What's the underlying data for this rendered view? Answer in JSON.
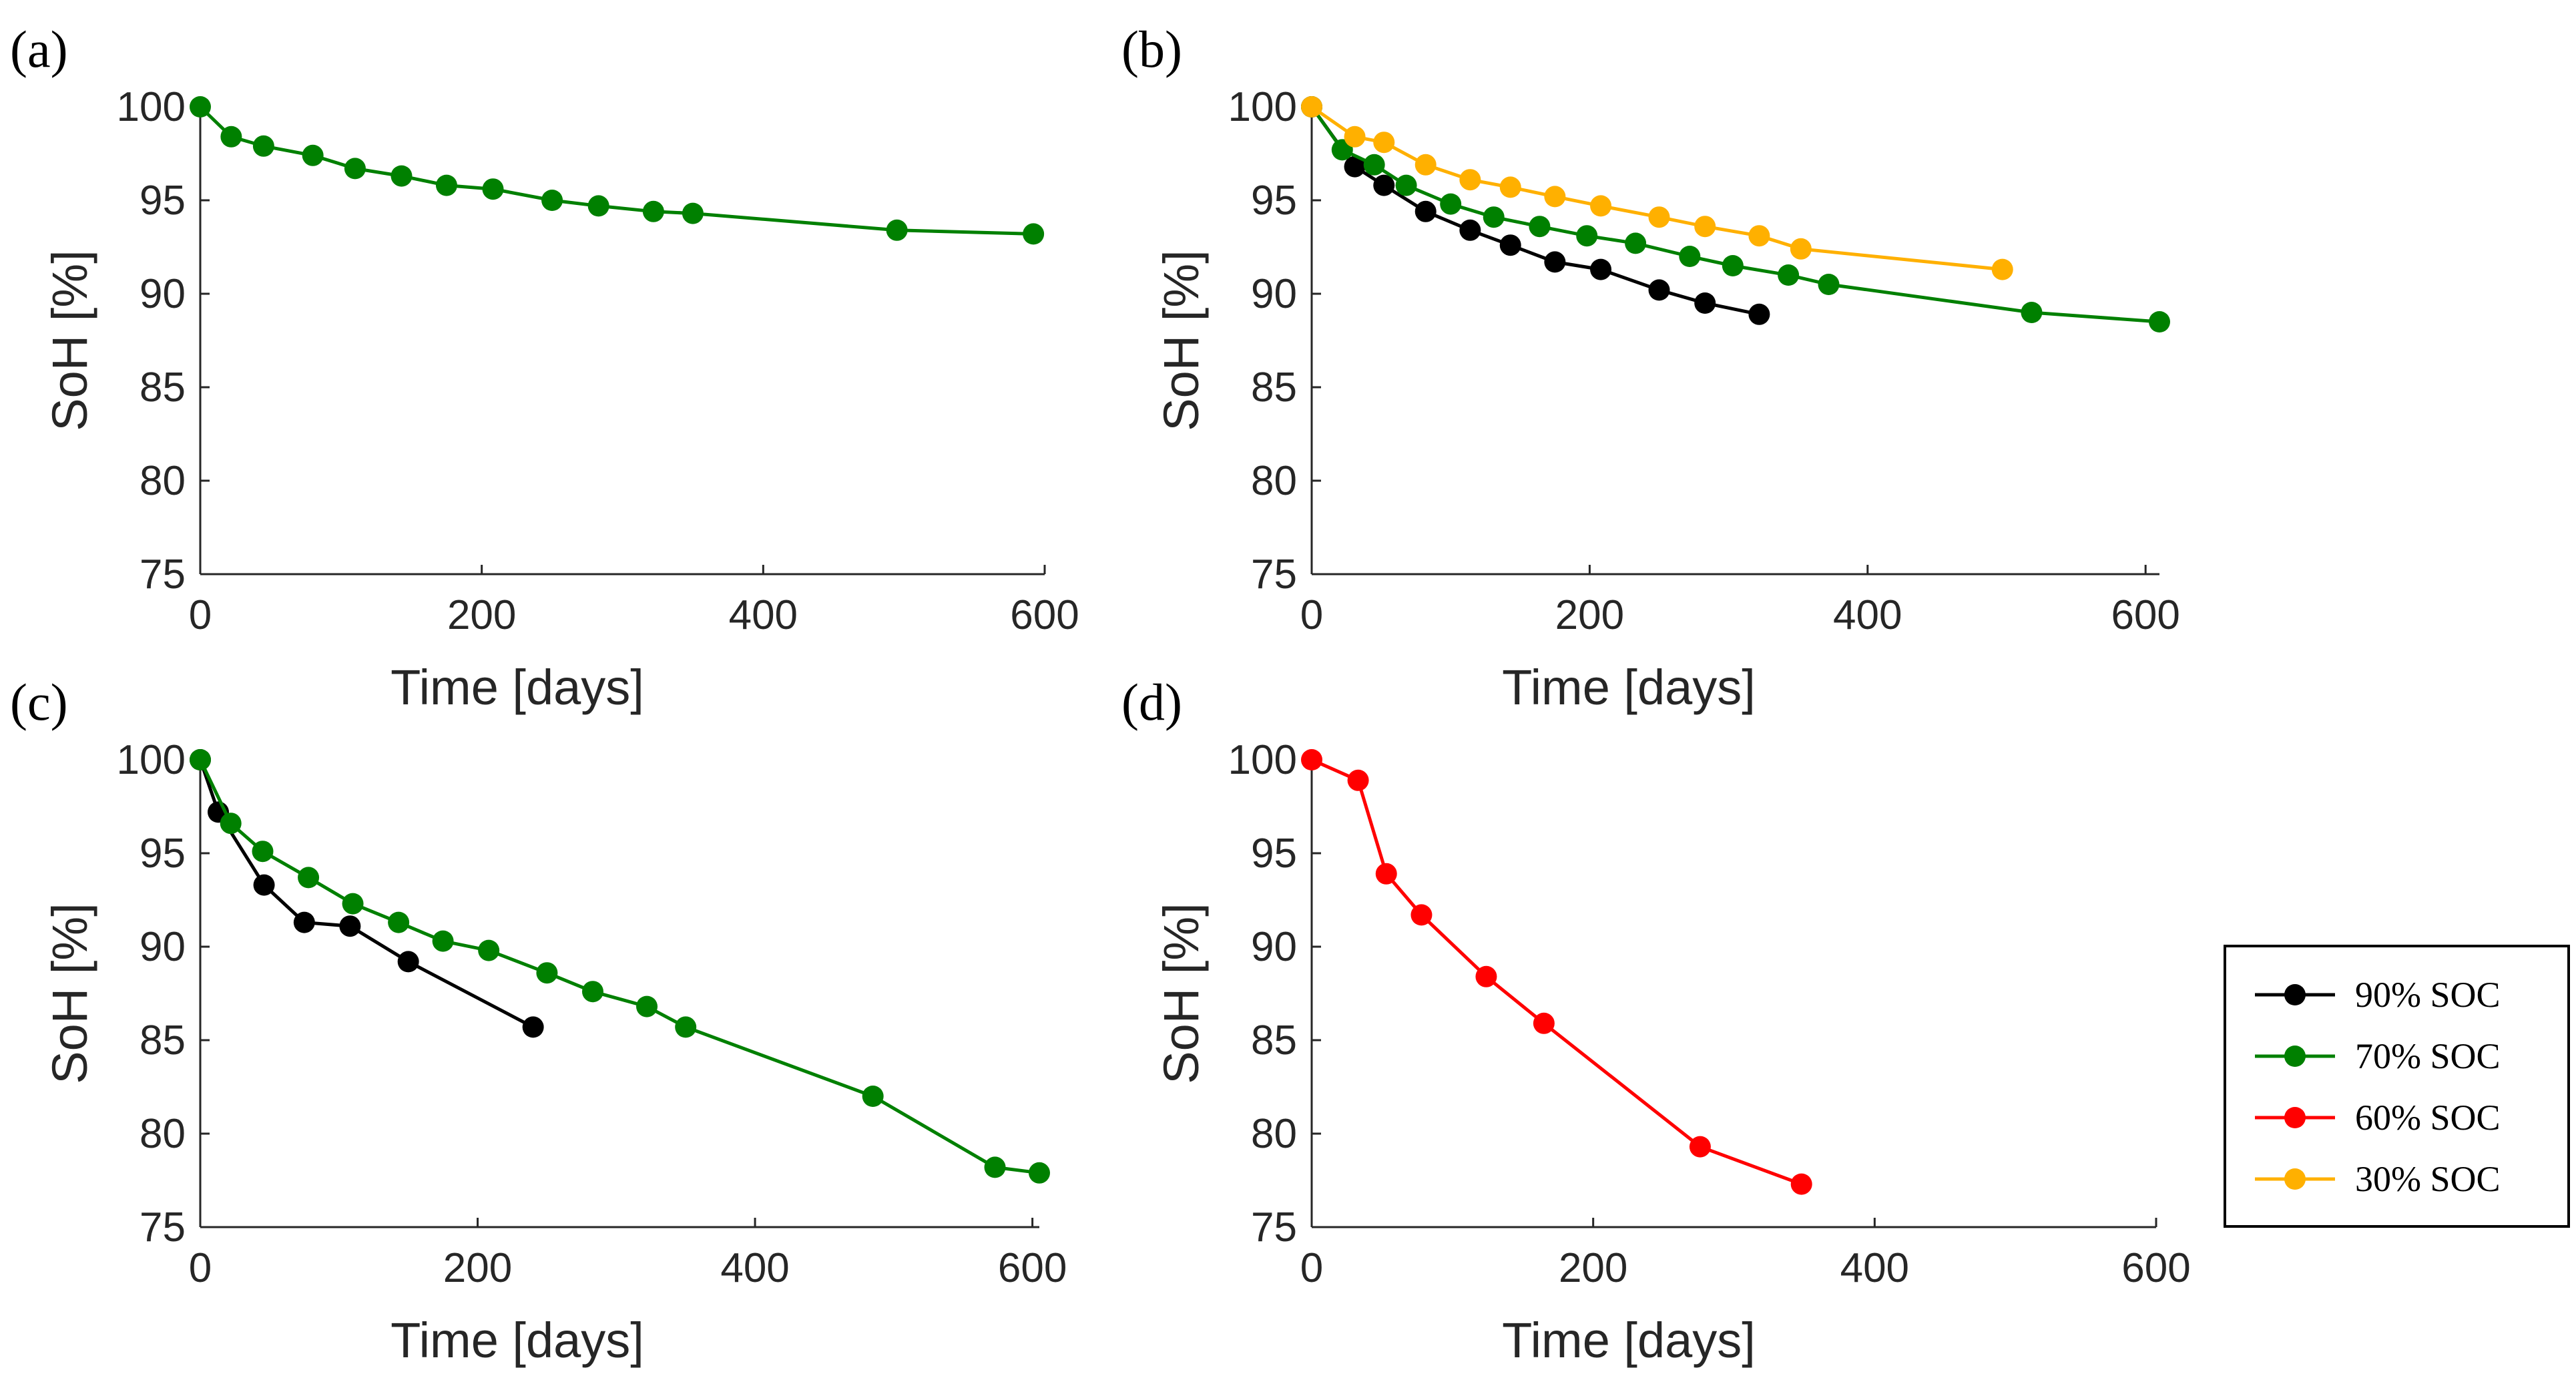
{
  "legend": {
    "entries": [
      {
        "label": "90% SOC",
        "color": "#000000"
      },
      {
        "label": "70% SOC",
        "color": "#008000"
      },
      {
        "label": "60% SOC",
        "color": "#ff0000"
      },
      {
        "label": "30% SOC",
        "color": "#ffb000"
      }
    ]
  },
  "chart_data": [
    {
      "type": "line",
      "panel_label": "(a)",
      "xlabel": "Time [days]",
      "ylabel": "SoH [%]",
      "xlim": [
        0,
        600
      ],
      "ylim": [
        75,
        100
      ],
      "xticks": [
        0,
        200,
        400,
        600
      ],
      "yticks": [
        75,
        80,
        85,
        90,
        95,
        100
      ],
      "grid": false,
      "series": [
        {
          "name": "70% SOC",
          "color": "#008000",
          "x": [
            0,
            22,
            45,
            80,
            110,
            143,
            175,
            208,
            250,
            283,
            322,
            350,
            495,
            592
          ],
          "y": [
            100,
            98.4,
            97.9,
            97.4,
            96.7,
            96.3,
            95.8,
            95.6,
            95.0,
            94.7,
            94.4,
            94.3,
            93.4,
            93.2
          ]
        }
      ]
    },
    {
      "type": "line",
      "panel_label": "(b)",
      "xlabel": "Time [days]",
      "ylabel": "SoH [%]",
      "xlim": [
        0,
        610
      ],
      "ylim": [
        75,
        100
      ],
      "xticks": [
        0,
        200,
        400,
        600
      ],
      "yticks": [
        75,
        80,
        85,
        90,
        95,
        100
      ],
      "grid": false,
      "series": [
        {
          "name": "90% SOC",
          "color": "#000000",
          "x": [
            0,
            31,
            52,
            82,
            114,
            143,
            175,
            208,
            250,
            283,
            322
          ],
          "y": [
            100,
            96.8,
            95.8,
            94.4,
            93.4,
            92.6,
            91.7,
            91.3,
            90.2,
            89.5,
            88.9
          ]
        },
        {
          "name": "70% SOC",
          "color": "#008000",
          "x": [
            0,
            22,
            45,
            68,
            100,
            131,
            164,
            198,
            233,
            272,
            303,
            343,
            372,
            518,
            610
          ],
          "y": [
            100,
            97.7,
            96.9,
            95.8,
            94.8,
            94.1,
            93.6,
            93.1,
            92.7,
            92.0,
            91.5,
            91.0,
            90.5,
            89.0,
            88.5
          ]
        },
        {
          "name": "30% SOC",
          "color": "#ffb000",
          "x": [
            0,
            31,
            52,
            82,
            114,
            143,
            175,
            208,
            250,
            283,
            322,
            352,
            497
          ],
          "y": [
            100,
            98.4,
            98.1,
            96.9,
            96.1,
            95.7,
            95.2,
            94.7,
            94.1,
            93.6,
            93.1,
            92.4,
            91.3
          ]
        }
      ]
    },
    {
      "type": "line",
      "panel_label": "(c)",
      "xlabel": "Time [days]",
      "ylabel": "SoH [%]",
      "xlim": [
        0,
        605
      ],
      "ylim": [
        75,
        100
      ],
      "xticks": [
        0,
        200,
        400,
        600
      ],
      "yticks": [
        75,
        80,
        85,
        90,
        95,
        100
      ],
      "grid": false,
      "series": [
        {
          "name": "90% SOC",
          "color": "#000000",
          "x": [
            0,
            13,
            46,
            75,
            108,
            150,
            240
          ],
          "y": [
            100,
            97.2,
            93.3,
            91.3,
            91.1,
            89.2,
            85.7
          ]
        },
        {
          "name": "70% SOC",
          "color": "#008000",
          "x": [
            0,
            22,
            45,
            78,
            110,
            143,
            175,
            208,
            250,
            283,
            322,
            350,
            485,
            573,
            605
          ],
          "y": [
            100,
            96.6,
            95.1,
            93.7,
            92.3,
            91.3,
            90.3,
            89.8,
            88.6,
            87.6,
            86.8,
            85.7,
            82.0,
            78.2,
            77.9
          ]
        }
      ]
    },
    {
      "type": "line",
      "panel_label": "(d)",
      "xlabel": "Time [days]",
      "ylabel": "SoH [%]",
      "xlim": [
        0,
        600
      ],
      "ylim": [
        75,
        100
      ],
      "xticks": [
        0,
        200,
        400,
        600
      ],
      "yticks": [
        75,
        80,
        85,
        90,
        95,
        100
      ],
      "grid": false,
      "series": [
        {
          "name": "60% SOC",
          "color": "#ff0000",
          "x": [
            0,
            33,
            53,
            78,
            124,
            165,
            276,
            348
          ],
          "y": [
            100,
            98.9,
            93.9,
            91.7,
            88.4,
            85.9,
            79.3,
            77.3
          ]
        }
      ]
    }
  ]
}
